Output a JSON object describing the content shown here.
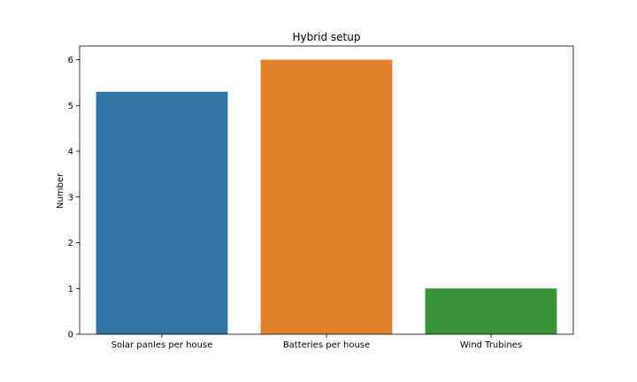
{
  "chart_data": {
    "type": "bar",
    "title": "Hybrid setup",
    "xlabel": "",
    "ylabel": "Number",
    "categories": [
      "Solar panles per house",
      "Batteries per house",
      "Wind Trubines"
    ],
    "values": [
      5.3,
      6.0,
      1.0
    ],
    "colors": [
      "#3274a1",
      "#e1812c",
      "#3a923a"
    ],
    "ylim": [
      0,
      6.3
    ],
    "yticks": [
      0,
      1,
      2,
      3,
      4,
      5,
      6
    ],
    "grid": false,
    "legend": "none"
  }
}
